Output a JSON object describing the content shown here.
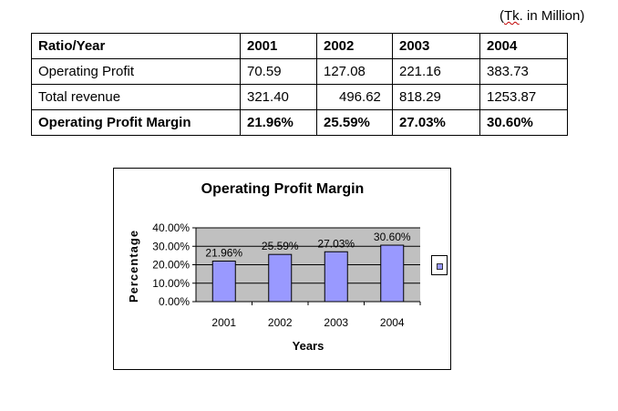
{
  "unit_note": {
    "open": "(",
    "tk": "Tk",
    "rest": ". in Million)"
  },
  "table": {
    "header": [
      "Ratio/Year",
      "2001",
      "2002",
      "2003",
      "2004"
    ],
    "rows": [
      {
        "label": "Operating Profit",
        "values": [
          "70.59",
          "127.08",
          "221.16",
          "383.73"
        ]
      },
      {
        "label": "Total revenue",
        "values": [
          "321.40",
          "496.62",
          "818.29",
          "1253.87"
        ]
      },
      {
        "label": "Operating Profit Margin",
        "values": [
          "21.96%",
          "25.59%",
          "27.03%",
          "30.60%"
        ]
      }
    ]
  },
  "chart_data": {
    "type": "bar",
    "title": "Operating Profit Margin",
    "xlabel": "Years",
    "ylabel": "Percentage",
    "categories": [
      "2001",
      "2002",
      "2003",
      "2004"
    ],
    "values": [
      21.96,
      25.59,
      27.03,
      30.6
    ],
    "data_labels": [
      "21.96%",
      "25.59%",
      "27.03%",
      "30.60%"
    ],
    "yticks": [
      "0.00%",
      "10.00%",
      "20.00%",
      "30.00%",
      "40.00%"
    ],
    "ylim": [
      0,
      40
    ],
    "grid": true,
    "legend": "right",
    "colors": {
      "bar": "#9999ff",
      "plot_area": "#c0c0c0"
    }
  }
}
